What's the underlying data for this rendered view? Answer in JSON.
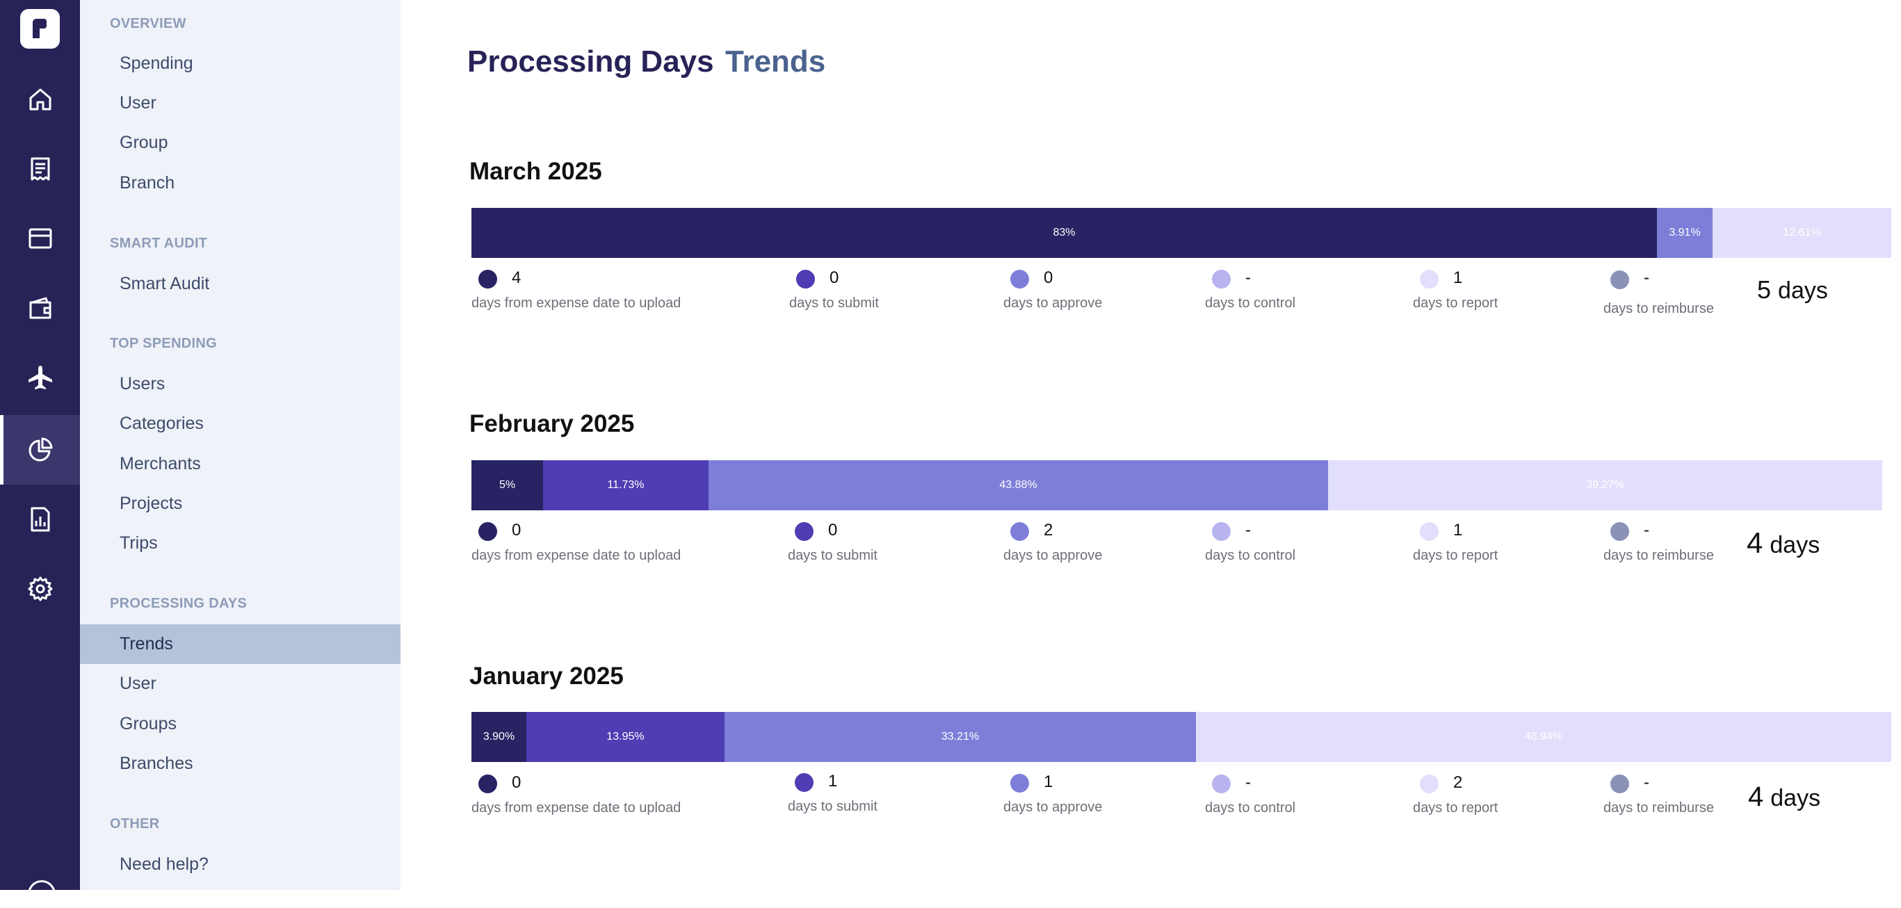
{
  "sidebar": {
    "sections": [
      {
        "title": "OVERVIEW",
        "items": [
          "Spending",
          "User",
          "Group",
          "Branch"
        ]
      },
      {
        "title": "SMART AUDIT",
        "items": [
          "Smart Audit"
        ]
      },
      {
        "title": "TOP SPENDING",
        "items": [
          "Users",
          "Categories",
          "Merchants",
          "Projects",
          "Trips"
        ]
      },
      {
        "title": "PROCESSING DAYS",
        "items": [
          "Trends",
          "User",
          "Groups",
          "Branches"
        ]
      },
      {
        "title": "OTHER",
        "items": [
          "Need help?"
        ]
      }
    ],
    "active_item": "Trends"
  },
  "header": {
    "title": "Processing Days",
    "subtitle": "Trends"
  },
  "colors": {
    "upload": "#282363",
    "submit": "#4f3db3",
    "approve": "#7e7ed9",
    "control": "#b7b4ef",
    "report": "#e1dffb",
    "reimburse": "#8a92b8"
  },
  "stage_labels": {
    "upload": "days from expense date to upload",
    "submit": "days to submit",
    "approve": "days to approve",
    "control": "days to control",
    "report": "days to report",
    "reimburse": "days to reimburse"
  },
  "months": [
    {
      "title": "March 2025",
      "segments": [
        {
          "label": "83%",
          "percent": 83
        },
        {
          "label": "3.91%",
          "percent": 3.91
        },
        {
          "label": "12.61%",
          "percent": 12.61
        }
      ],
      "stats": {
        "upload": "4",
        "submit": "0",
        "approve": "0",
        "control": "-",
        "report": "1",
        "reimburse": "-"
      },
      "total_value": "5",
      "total_unit": "days"
    },
    {
      "title": "February 2025",
      "segments": [
        {
          "label": "5%",
          "percent": 5
        },
        {
          "label": "11.73%",
          "percent": 11.73
        },
        {
          "label": "43.88%",
          "percent": 43.88
        },
        {
          "label": "39.27%",
          "percent": 39.27
        }
      ],
      "stats": {
        "upload": "0",
        "submit": "0",
        "approve": "2",
        "control": "-",
        "report": "1",
        "reimburse": "-"
      },
      "total_value": "4",
      "total_unit": "days"
    },
    {
      "title": "January 2025",
      "segments": [
        {
          "label": "3.90%",
          "percent": 3.9
        },
        {
          "label": "13.95%",
          "percent": 13.95
        },
        {
          "label": "33.21%",
          "percent": 33.21
        },
        {
          "label": "48.94%",
          "percent": 48.94
        }
      ],
      "stats": {
        "upload": "0",
        "submit": "1",
        "approve": "1",
        "control": "-",
        "report": "2",
        "reimburse": "-"
      },
      "total_value": "4",
      "total_unit": "days"
    }
  ]
}
